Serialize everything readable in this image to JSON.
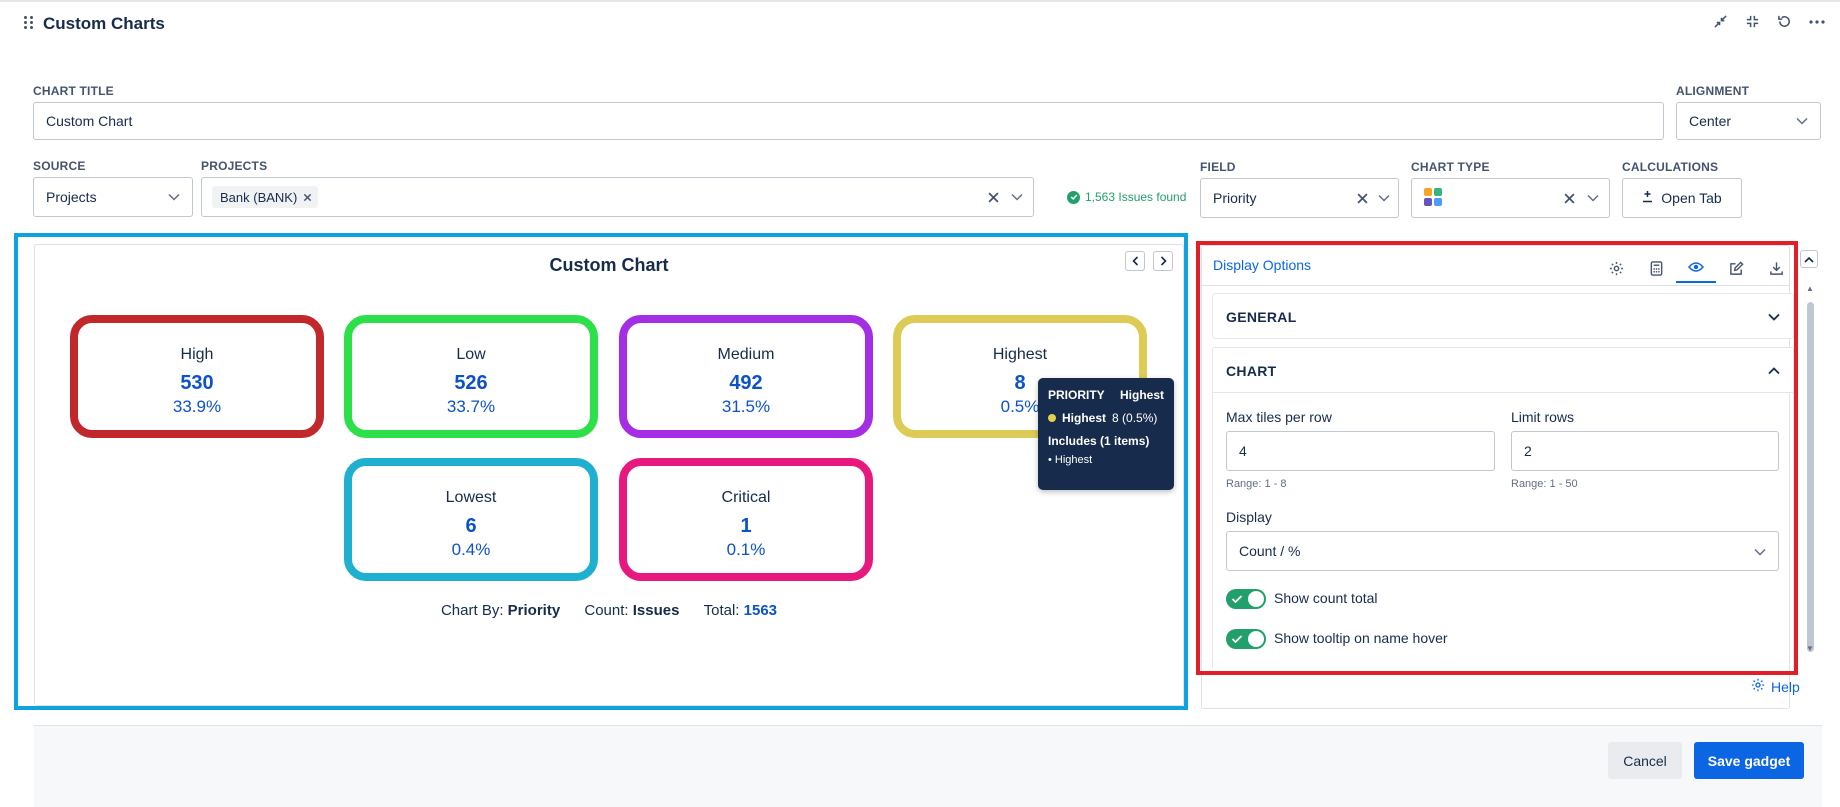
{
  "header": {
    "title": "Custom Charts",
    "icons": [
      "minimize-icon",
      "collapse-icon",
      "refresh-icon",
      "more-icon"
    ]
  },
  "form": {
    "chart_title_label": "CHART TITLE",
    "chart_title_value": "Custom Chart",
    "alignment_label": "ALIGNMENT",
    "alignment_value": "Center",
    "source_label": "SOURCE",
    "source_value": "Projects",
    "projects_label": "PROJECTS",
    "project_chip": "Bank (BANK)",
    "issues_found": "1,563 Issues found",
    "field_label": "FIELD",
    "field_value": "Priority",
    "chart_type_label": "CHART TYPE",
    "calculations_label": "CALCULATIONS",
    "open_tab_label": "Open Tab"
  },
  "chart": {
    "title": "Custom Chart",
    "tiles": [
      {
        "name": "High",
        "count": "530",
        "pct": "33.9%",
        "color": "#c0282b"
      },
      {
        "name": "Low",
        "count": "526",
        "pct": "33.7%",
        "color": "#2de04a"
      },
      {
        "name": "Medium",
        "count": "492",
        "pct": "31.5%",
        "color": "#a32ee3"
      },
      {
        "name": "Highest",
        "count": "8",
        "pct": "0.5%",
        "color": "#ddcb55"
      },
      {
        "name": "Lowest",
        "count": "6",
        "pct": "0.4%",
        "color": "#1fb0d0"
      },
      {
        "name": "Critical",
        "count": "1",
        "pct": "0.1%",
        "color": "#e8197e"
      }
    ],
    "summary": {
      "chart_by_label": "Chart By:",
      "chart_by_value": "Priority",
      "count_label": "Count:",
      "count_value": "Issues",
      "total_label": "Total:",
      "total_value": "1563"
    },
    "tooltip": {
      "header_key": "PRIORITY",
      "header_value": "Highest",
      "row_name": "Highest",
      "row_value": "8 (0.5%)",
      "includes": "Includes (1 items)",
      "item": "• Highest"
    }
  },
  "display_options": {
    "title": "Display Options",
    "tab_icons": [
      "gear-icon",
      "calculator-icon",
      "eye-icon",
      "edit-icon",
      "download-icon"
    ],
    "general_label": "GENERAL",
    "chart_label": "CHART",
    "max_tiles_label": "Max tiles per row",
    "max_tiles_value": "4",
    "max_tiles_hint": "Range: 1 - 8",
    "limit_rows_label": "Limit rows",
    "limit_rows_value": "2",
    "limit_rows_hint": "Range: 1 - 50",
    "display_label": "Display",
    "display_value": "Count / %",
    "show_count_total": "Show count total",
    "show_tooltip": "Show tooltip on name hover",
    "help": "Help"
  },
  "footer": {
    "cancel": "Cancel",
    "save": "Save gadget"
  }
}
